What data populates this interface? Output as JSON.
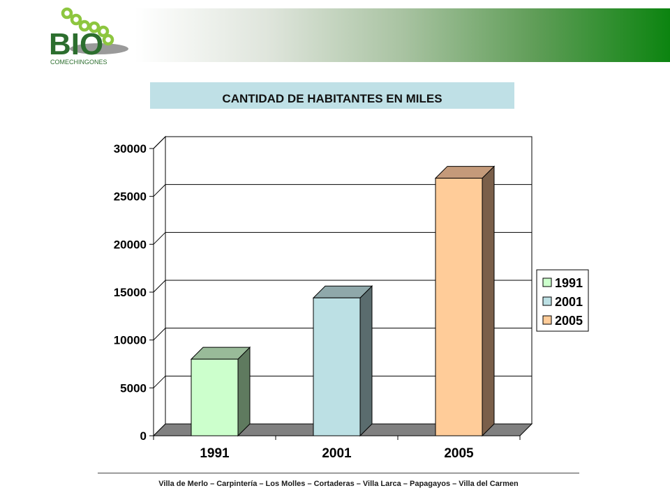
{
  "logo": {
    "word": "BIO",
    "subtitle": "COMECHINGONES"
  },
  "title": "CANTIDAD DE HABITANTES EN MILES",
  "footer": "Villa de  Merlo – Carpintería  – Los Molles – Cortaderas  – Villa Larca – Papagayos – Villa del Carmen",
  "colors": {
    "fronts": [
      "#ccffcc",
      "#bce0e4",
      "#ffcc99"
    ],
    "sides": [
      "#5f7a5f",
      "#5a6c6e",
      "#7a5f4a"
    ],
    "tops": [
      "#99bb99",
      "#8fa8aa",
      "#c49a7a"
    ],
    "floor": "#808080",
    "wall": "#ffffff"
  },
  "chart_data": {
    "type": "bar",
    "categories": [
      "1991",
      "2001",
      "2005"
    ],
    "values": [
      8000,
      14400,
      26900
    ],
    "ylim": [
      0,
      30000
    ],
    "yticks": [
      "0",
      "5000",
      "10000",
      "15000",
      "20000",
      "25000",
      "30000"
    ],
    "legend": [
      "1991",
      "2001",
      "2005"
    ],
    "legend_position": "right",
    "grid": true,
    "style": "3d"
  }
}
